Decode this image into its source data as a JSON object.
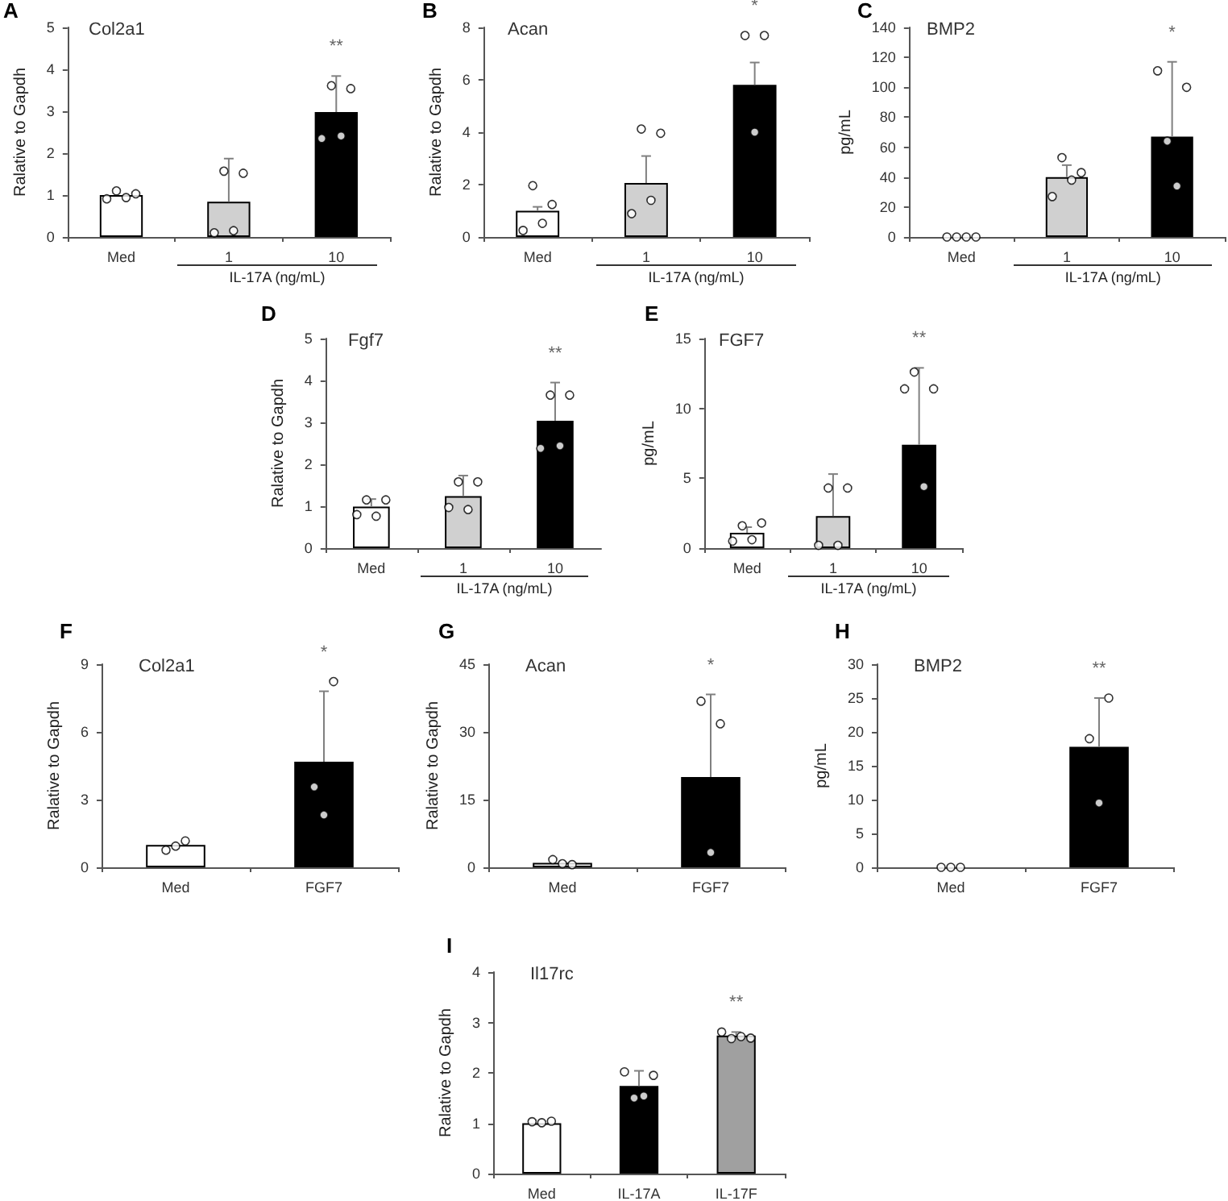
{
  "chart_data": [
    {
      "type": "bar",
      "title": "Col2a1",
      "ylabel": "Ralative to Gapdh",
      "categories": [
        "Med",
        "1",
        "10"
      ],
      "ylim": [
        0,
        5
      ],
      "yticks": [
        0,
        1,
        2,
        3,
        4,
        5
      ],
      "series": [
        {
          "colors": [
            "#ffffff",
            "#d0d0d0",
            "#000000"
          ],
          "values": [
            1.0,
            0.84,
            2.98
          ],
          "errors": [
            null,
            [
              0.84,
              1.87
            ],
            [
              2.98,
              3.84
            ]
          ]
        },
        {
          "type": "scatter",
          "color": "#ffffff",
          "x": [
            "Med",
            "Med",
            "Med",
            "Med",
            "1",
            "1",
            "1",
            "1",
            "10",
            "10",
            "10",
            "10"
          ],
          "values": [
            0.91,
            1.1,
            0.94,
            1.03,
            0.1,
            1.57,
            0.15,
            1.52,
            2.35,
            3.61,
            2.41,
            3.54
          ]
        }
      ],
      "annotations": [
        "A",
        "**",
        "IL-17A (ng/mL)"
      ]
    },
    {
      "type": "bar",
      "title": "Acan",
      "ylabel": "Ralative to Gapdh",
      "categories": [
        "Med",
        "1",
        "10"
      ],
      "ylim": [
        0,
        8
      ],
      "yticks": [
        0,
        2,
        4,
        6,
        8
      ],
      "series": [
        {
          "colors": [
            "#ffffff",
            "#d0d0d0",
            "#000000"
          ],
          "values": [
            1.0,
            2.06,
            5.81
          ],
          "errors": [
            [
              1.0,
              1.15
            ],
            [
              2.06,
              3.09
            ],
            [
              5.81,
              6.66
            ]
          ]
        },
        {
          "type": "scatter",
          "color": "#ffffff",
          "x": [
            "Med",
            "Med",
            "Med",
            "Med",
            "1",
            "1",
            "1",
            "1",
            "10",
            "10",
            "10"
          ],
          "values": [
            0.25,
            1.96,
            0.52,
            1.24,
            0.89,
            4.12,
            1.4,
            3.96,
            7.69,
            4.0,
            7.69
          ]
        }
      ],
      "annotations": [
        "B",
        "*",
        "IL-17A (ng/mL)"
      ]
    },
    {
      "type": "bar",
      "title": "BMP2",
      "ylabel": "pg/mL",
      "categories": [
        "Med",
        "1",
        "10"
      ],
      "ylim": [
        0,
        140
      ],
      "yticks": [
        0,
        20,
        40,
        60,
        80,
        100,
        120,
        140
      ],
      "series": [
        {
          "colors": [
            "#ffffff",
            "#d0d0d0",
            "#000000"
          ],
          "values": [
            0,
            40,
            67
          ],
          "errors": [
            null,
            [
              40,
              48
            ],
            [
              67,
              117
            ]
          ]
        },
        {
          "type": "scatter",
          "color": "#ffffff",
          "x": [
            "Med",
            "Med",
            "Med",
            "Med",
            "1",
            "1",
            "1",
            "1",
            "10",
            "10",
            "10",
            "10"
          ],
          "values": [
            0,
            0,
            0,
            0,
            27,
            53,
            38,
            43,
            111,
            64,
            34,
            100
          ]
        }
      ],
      "annotations": [
        "C",
        "*",
        "IL-17A (ng/mL)"
      ]
    },
    {
      "type": "bar",
      "title": "Fgf7",
      "ylabel": "Ralative to Gapdh",
      "categories": [
        "Med",
        "1",
        "10"
      ],
      "ylim": [
        0,
        5
      ],
      "yticks": [
        0,
        1,
        2,
        3,
        4,
        5
      ],
      "series": [
        {
          "colors": [
            "#ffffff",
            "#d0d0d0",
            "#000000"
          ],
          "values": [
            0.99,
            1.24,
            3.04
          ],
          "errors": [
            [
              0.99,
              1.17
            ],
            [
              1.24,
              1.73
            ],
            [
              3.04,
              3.95
            ]
          ]
        },
        {
          "type": "scatter",
          "color": "#ffffff",
          "x": [
            "Med",
            "Med",
            "Med",
            "Med",
            "1",
            "1",
            "1",
            "1",
            "10",
            "10",
            "10",
            "10"
          ],
          "values": [
            0.8,
            1.15,
            0.76,
            1.15,
            0.97,
            1.58,
            0.92,
            1.58,
            2.38,
            3.65,
            2.44,
            3.65
          ]
        }
      ],
      "annotations": [
        "D",
        "**",
        "IL-17A (ng/mL)"
      ]
    },
    {
      "type": "bar",
      "title": "FGF7",
      "ylabel": "pg/mL",
      "categories": [
        "Med",
        "1",
        "10"
      ],
      "ylim": [
        0,
        15
      ],
      "yticks": [
        0,
        5,
        10,
        15
      ],
      "series": [
        {
          "colors": [
            "#ffffff",
            "#d0d0d0",
            "#000000"
          ],
          "values": [
            1.1,
            2.3,
            7.4
          ],
          "errors": [
            [
              1.1,
              1.5
            ],
            [
              2.3,
              5.3
            ],
            [
              7.4,
              12.9
            ]
          ]
        },
        {
          "type": "scatter",
          "color": "#ffffff",
          "x": [
            "Med",
            "Med",
            "Med",
            "Med",
            "1",
            "1",
            "1",
            "1",
            "10",
            "10",
            "10",
            "10"
          ],
          "values": [
            0.5,
            1.6,
            0.6,
            1.8,
            0.2,
            4.3,
            0.2,
            4.3,
            11.4,
            12.6,
            4.4,
            11.4
          ]
        }
      ],
      "annotations": [
        "E",
        "**",
        "IL-17A (ng/mL)"
      ]
    },
    {
      "type": "bar",
      "title": "Col2a1",
      "ylabel": "Ralative to Gapdh",
      "categories": [
        "Med",
        "FGF7"
      ],
      "ylim": [
        0,
        9
      ],
      "yticks": [
        0,
        3,
        6,
        9
      ],
      "series": [
        {
          "colors": [
            "#ffffff",
            "#000000"
          ],
          "values": [
            0.99,
            4.68
          ],
          "errors": [
            null,
            [
              4.68,
              7.8
            ]
          ]
        },
        {
          "type": "scatter",
          "color": "#ffffff",
          "x": [
            "Med",
            "Med",
            "Med",
            "FGF7",
            "FGF7",
            "FGF7"
          ],
          "values": [
            0.76,
            0.94,
            1.17,
            3.56,
            2.32,
            8.23
          ]
        }
      ],
      "annotations": [
        "F",
        "*"
      ]
    },
    {
      "type": "bar",
      "title": "Acan",
      "ylabel": "Ralative to Gapdh",
      "categories": [
        "Med",
        "FGF7"
      ],
      "ylim": [
        0,
        45
      ],
      "yticks": [
        0,
        15,
        30,
        45
      ],
      "series": [
        {
          "colors": [
            "#ffffff",
            "#000000"
          ],
          "values": [
            1.0,
            20.0
          ],
          "errors": [
            null,
            [
              20.0,
              38.3
            ]
          ]
        },
        {
          "type": "scatter",
          "color": "#ffffff",
          "x": [
            "Med",
            "Med",
            "Med",
            "FGF7",
            "FGF7",
            "FGF7"
          ],
          "values": [
            1.7,
            0.8,
            0.6,
            36.8,
            3.3,
            31.8
          ]
        }
      ],
      "annotations": [
        "G",
        "*"
      ]
    },
    {
      "type": "bar",
      "title": "BMP2",
      "ylabel": "pg/mL",
      "categories": [
        "Med",
        "FGF7"
      ],
      "ylim": [
        0,
        30
      ],
      "yticks": [
        0,
        5,
        10,
        15,
        20,
        25,
        30
      ],
      "series": [
        {
          "colors": [
            "#ffffff",
            "#000000"
          ],
          "values": [
            0,
            17.8
          ],
          "errors": [
            null,
            [
              17.8,
              25.0
            ]
          ]
        },
        {
          "type": "scatter",
          "color": "#ffffff",
          "x": [
            "Med",
            "Med",
            "Med",
            "FGF7",
            "FGF7",
            "FGF7"
          ],
          "values": [
            0,
            0,
            0,
            19.0,
            9.5,
            25.0
          ]
        }
      ],
      "annotations": [
        "H",
        "**"
      ]
    },
    {
      "type": "bar",
      "title": "Il17rc",
      "ylabel": "Ralative to Gapdh",
      "categories": [
        "Med",
        "IL-17A",
        "IL-17F"
      ],
      "ylim": [
        0,
        4
      ],
      "yticks": [
        0,
        1,
        2,
        3,
        4
      ],
      "series": [
        {
          "colors": [
            "#ffffff",
            "#000000",
            "#a0a0a0"
          ],
          "values": [
            1.0,
            1.74,
            2.74
          ],
          "errors": [
            null,
            [
              1.74,
              2.04
            ],
            [
              2.74,
              2.81
            ]
          ]
        },
        {
          "type": "scatter",
          "color": "#ffffff",
          "x": [
            "Med",
            "Med",
            "Med",
            "IL-17A",
            "IL-17A",
            "IL-17A",
            "IL-17A",
            "IL-17F",
            "IL-17F",
            "IL-17F",
            "IL-17F"
          ],
          "values": [
            1.03,
            1.01,
            1.04,
            2.02,
            1.5,
            1.54,
            1.95,
            2.81,
            2.68,
            2.72,
            2.69
          ]
        }
      ],
      "annotations": [
        "I",
        "**"
      ]
    }
  ]
}
